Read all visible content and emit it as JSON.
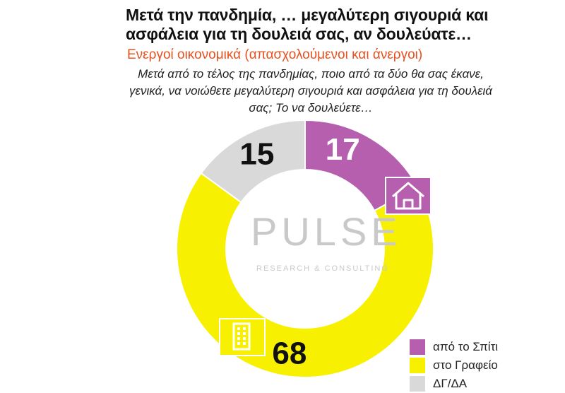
{
  "title": "Μετά την πανδημία, … μεγαλύτερη σιγουριά και ασφάλεια για τη δουλειά σας, αν δουλεύατε…",
  "subtitle": "Ενεργοί οικονομικά  (απασχολούμενοι και άνεργοι)",
  "question": "Μετά από το τέλος της πανδημίας, ποιο από τα δύο θα σας έκανε, γενικά, να νοιώθετε μεγαλύτερη σιγουριά και ασφάλεια για τη δουλειά σας; Το να δουλεύετε…",
  "watermark": {
    "brand": "PULSE",
    "tagline": "RESEARCH & CONSULTING"
  },
  "chart_data": {
    "type": "pie",
    "variant": "donut",
    "title": "",
    "categories": [
      "από το Σπίτι",
      "στο Γραφείο",
      "ΔΓ/ΔΑ"
    ],
    "values": [
      17,
      68,
      15
    ],
    "colors": [
      "#b55fae",
      "#f7f000",
      "#d9d9d9"
    ],
    "icons": [
      "house-icon",
      "office-building-icon",
      ""
    ],
    "legend_position": "bottom-right"
  }
}
